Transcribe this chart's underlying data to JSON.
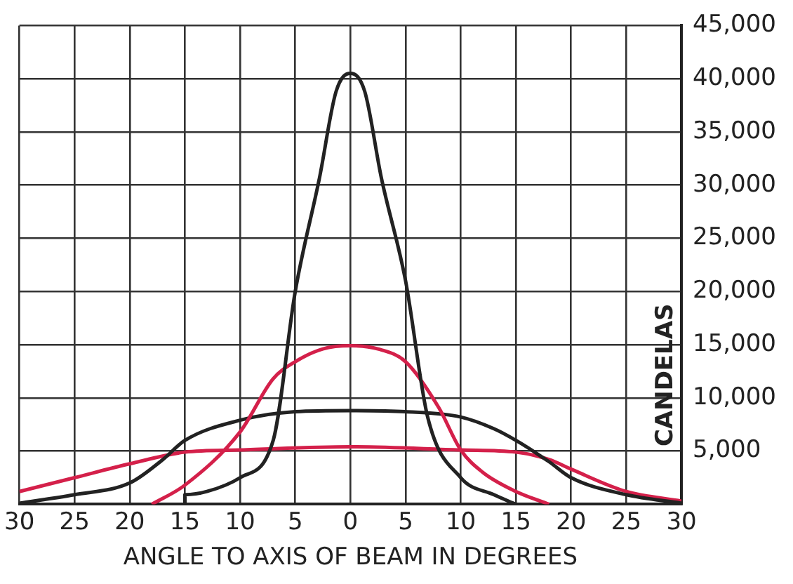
{
  "chart_data": {
    "type": "line",
    "xlabel": "ANGLE TO AXIS OF BEAM IN DEGREES",
    "ylabel": "CANDELAS",
    "xlim": [
      -30,
      30
    ],
    "ylim": [
      0,
      45000
    ],
    "xticks": [
      {
        "value": -30,
        "label": "30"
      },
      {
        "value": -25,
        "label": "25"
      },
      {
        "value": -20,
        "label": "20"
      },
      {
        "value": -15,
        "label": "15"
      },
      {
        "value": -10,
        "label": "10"
      },
      {
        "value": -5,
        "label": "5"
      },
      0,
      5,
      10,
      15,
      20,
      25,
      30
    ],
    "yticks": [
      {
        "value": 5000,
        "label": "5,000"
      },
      {
        "value": 10000,
        "label": "10,000"
      },
      {
        "value": 15000,
        "label": "15,000"
      },
      {
        "value": 20000,
        "label": "20,000"
      },
      {
        "value": 25000,
        "label": "25,000"
      },
      {
        "value": 30000,
        "label": "30,000"
      },
      {
        "value": 35000,
        "label": "35,000"
      },
      {
        "value": 40000,
        "label": "40,000"
      },
      {
        "value": 45000,
        "label": "45,000"
      }
    ],
    "grid": true,
    "legend": false,
    "series": [
      {
        "color": "#222222",
        "x": [
          -15,
          -15,
          -13,
          -10,
          -7,
          -5,
          -2.8,
          -1.3,
          0,
          1.3,
          2.8,
          5,
          7,
          10,
          13,
          15
        ],
        "values": [
          0,
          900,
          1200,
          2500,
          6000,
          20000,
          30700,
          38800,
          40500,
          38800,
          30700,
          21000,
          8200,
          2500,
          900,
          0
        ]
      },
      {
        "color": "#d4204a",
        "x": [
          -18,
          -15,
          -10,
          -7,
          -5,
          -2.5,
          0,
          2.5,
          5,
          8,
          10,
          12,
          15,
          18
        ],
        "values": [
          0,
          1800,
          6800,
          11800,
          13400,
          14600,
          14900,
          14600,
          13400,
          9100,
          5100,
          3000,
          1200,
          0
        ]
      },
      {
        "color": "#222222",
        "x": [
          -30,
          -25,
          -20,
          -17,
          -15,
          -10,
          -5,
          0,
          5,
          10,
          13,
          15,
          18,
          20,
          25,
          30
        ],
        "values": [
          100,
          900,
          2000,
          4200,
          6000,
          7900,
          8700,
          8800,
          8700,
          8200,
          7100,
          6000,
          4000,
          2500,
          900,
          100
        ]
      },
      {
        "color": "#d4204a",
        "x": [
          -30,
          -25,
          -20,
          -15,
          -10,
          0,
          10,
          15,
          18,
          20,
          25,
          30
        ],
        "values": [
          1200,
          2500,
          3800,
          4900,
          5100,
          5400,
          5100,
          4900,
          4200,
          3300,
          1200,
          300
        ]
      }
    ]
  }
}
